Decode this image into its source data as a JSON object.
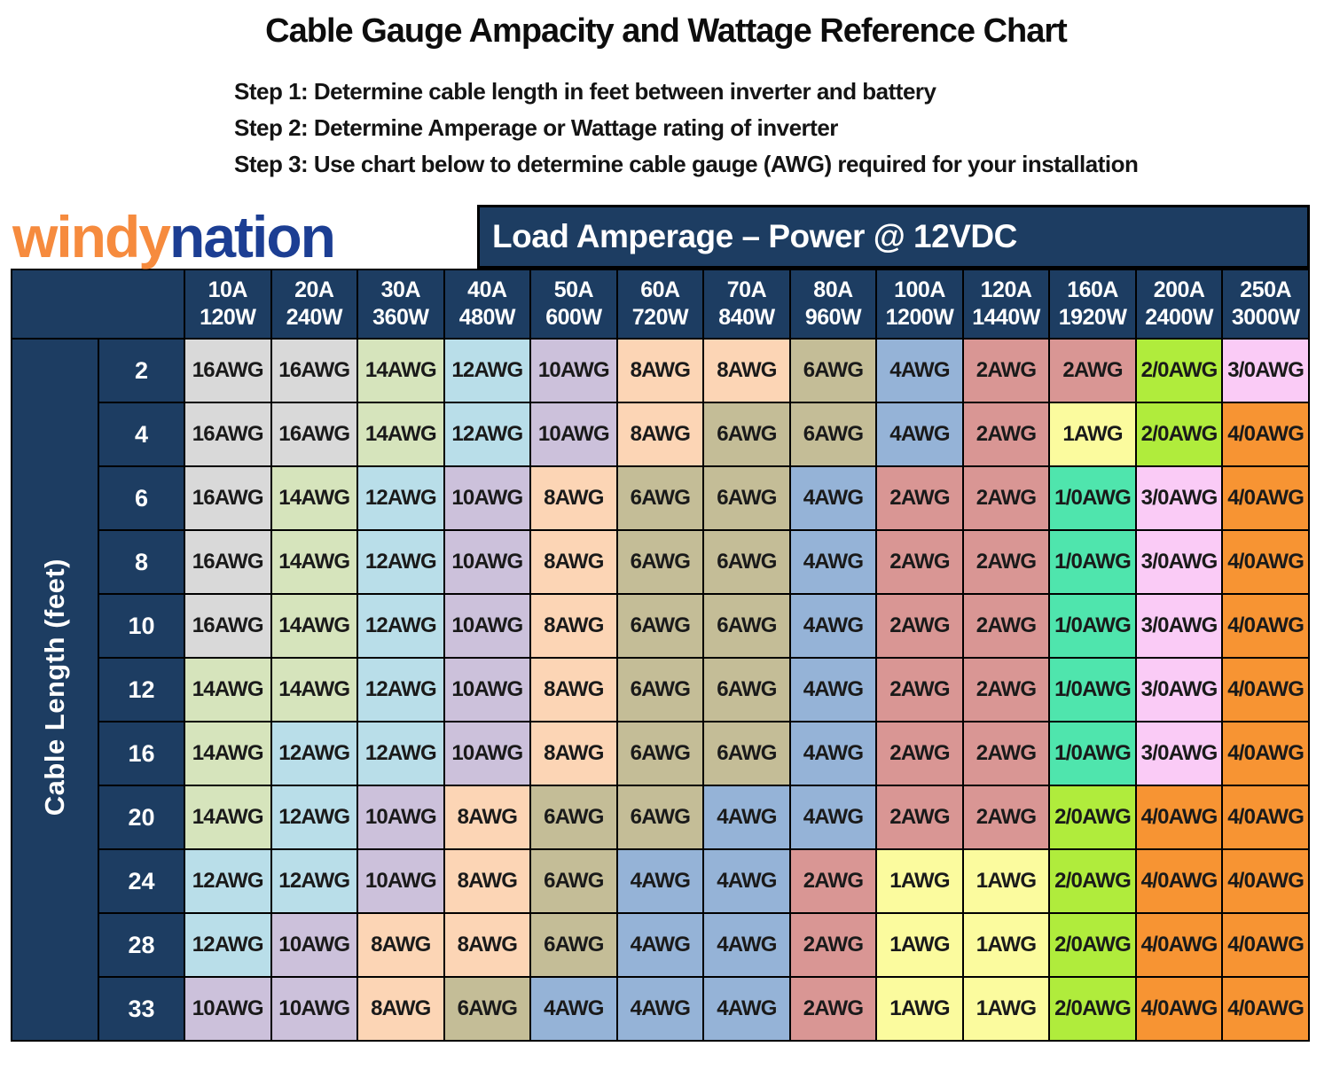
{
  "page": {
    "title": "Cable Gauge Ampacity and Wattage Reference Chart",
    "steps": [
      "Step 1: Determine cable length in feet between inverter and battery",
      "Step 2: Determine Amperage or Wattage rating of inverter",
      "Step 3: Use chart below to determine cable gauge (AWG) required for your installation"
    ]
  },
  "brand": {
    "logo_windy": "windy",
    "logo_nation": "nation",
    "windy_color": "#F68B3E",
    "nation_color": "#1C3E93"
  },
  "banner": {
    "label": "Load Amperage – Power @ 12VDC",
    "bg_color": "#1D3D62",
    "text_color": "#FFFFFF"
  },
  "chart_data": {
    "type": "table",
    "title": "Cable Gauge Ampacity and Wattage Reference Chart",
    "column_axis_label": "Load Amperage – Power @ 12VDC",
    "row_axis_label": "Cable Length (feet)",
    "header_bg": "#1D3D62",
    "header_text_color": "#FFFFFF",
    "columns": [
      {
        "amps": "10A",
        "watts": "120W"
      },
      {
        "amps": "20A",
        "watts": "240W"
      },
      {
        "amps": "30A",
        "watts": "360W"
      },
      {
        "amps": "40A",
        "watts": "480W"
      },
      {
        "amps": "50A",
        "watts": "600W"
      },
      {
        "amps": "60A",
        "watts": "720W"
      },
      {
        "amps": "70A",
        "watts": "840W"
      },
      {
        "amps": "80A",
        "watts": "960W"
      },
      {
        "amps": "100A",
        "watts": "1200W"
      },
      {
        "amps": "120A",
        "watts": "1440W"
      },
      {
        "amps": "160A",
        "watts": "1920W"
      },
      {
        "amps": "200A",
        "watts": "2400W"
      },
      {
        "amps": "250A",
        "watts": "3000W"
      }
    ],
    "rows": [
      {
        "length": "2",
        "values": [
          "16AWG",
          "16AWG",
          "14AWG",
          "12AWG",
          "10AWG",
          "8AWG",
          "8AWG",
          "6AWG",
          "4AWG",
          "2AWG",
          "2AWG",
          "2/0AWG",
          "3/0AWG"
        ]
      },
      {
        "length": "4",
        "values": [
          "16AWG",
          "16AWG",
          "14AWG",
          "12AWG",
          "10AWG",
          "8AWG",
          "6AWG",
          "6AWG",
          "4AWG",
          "2AWG",
          "1AWG",
          "2/0AWG",
          "4/0AWG"
        ]
      },
      {
        "length": "6",
        "values": [
          "16AWG",
          "14AWG",
          "12AWG",
          "10AWG",
          "8AWG",
          "6AWG",
          "6AWG",
          "4AWG",
          "2AWG",
          "2AWG",
          "1/0AWG",
          "3/0AWG",
          "4/0AWG"
        ]
      },
      {
        "length": "8",
        "values": [
          "16AWG",
          "14AWG",
          "12AWG",
          "10AWG",
          "8AWG",
          "6AWG",
          "6AWG",
          "4AWG",
          "2AWG",
          "2AWG",
          "1/0AWG",
          "3/0AWG",
          "4/0AWG"
        ]
      },
      {
        "length": "10",
        "values": [
          "16AWG",
          "14AWG",
          "12AWG",
          "10AWG",
          "8AWG",
          "6AWG",
          "6AWG",
          "4AWG",
          "2AWG",
          "2AWG",
          "1/0AWG",
          "3/0AWG",
          "4/0AWG"
        ]
      },
      {
        "length": "12",
        "values": [
          "14AWG",
          "14AWG",
          "12AWG",
          "10AWG",
          "8AWG",
          "6AWG",
          "6AWG",
          "4AWG",
          "2AWG",
          "2AWG",
          "1/0AWG",
          "3/0AWG",
          "4/0AWG"
        ]
      },
      {
        "length": "16",
        "values": [
          "14AWG",
          "12AWG",
          "12AWG",
          "10AWG",
          "8AWG",
          "6AWG",
          "6AWG",
          "4AWG",
          "2AWG",
          "2AWG",
          "1/0AWG",
          "3/0AWG",
          "4/0AWG"
        ]
      },
      {
        "length": "20",
        "values": [
          "14AWG",
          "12AWG",
          "10AWG",
          "8AWG",
          "6AWG",
          "6AWG",
          "4AWG",
          "4AWG",
          "2AWG",
          "2AWG",
          "2/0AWG",
          "4/0AWG",
          "4/0AWG"
        ]
      },
      {
        "length": "24",
        "values": [
          "12AWG",
          "12AWG",
          "10AWG",
          "8AWG",
          "6AWG",
          "4AWG",
          "4AWG",
          "2AWG",
          "1AWG",
          "1AWG",
          "2/0AWG",
          "4/0AWG",
          "4/0AWG"
        ]
      },
      {
        "length": "28",
        "values": [
          "12AWG",
          "10AWG",
          "8AWG",
          "8AWG",
          "6AWG",
          "4AWG",
          "4AWG",
          "2AWG",
          "1AWG",
          "1AWG",
          "2/0AWG",
          "4/0AWG",
          "4/0AWG"
        ]
      },
      {
        "length": "33",
        "values": [
          "10AWG",
          "10AWG",
          "8AWG",
          "6AWG",
          "4AWG",
          "4AWG",
          "4AWG",
          "2AWG",
          "1AWG",
          "1AWG",
          "2/0AWG",
          "4/0AWG",
          "4/0AWG"
        ]
      }
    ],
    "gauge_colors": {
      "16AWG": "#D9D9D9",
      "14AWG": "#D6E4BC",
      "12AWG": "#B9DEE9",
      "10AWG": "#CCC1DB",
      "8AWG": "#FCD5B5",
      "6AWG": "#C4BD97",
      "4AWG": "#95B3D7",
      "2AWG": "#D99694",
      "1AWG": "#FBFB9E",
      "1/0AWG": "#4FE5AD",
      "2/0AWG": "#B0EC3C",
      "3/0AWG": "#FACBF6",
      "4/0AWG": "#F79433"
    }
  }
}
